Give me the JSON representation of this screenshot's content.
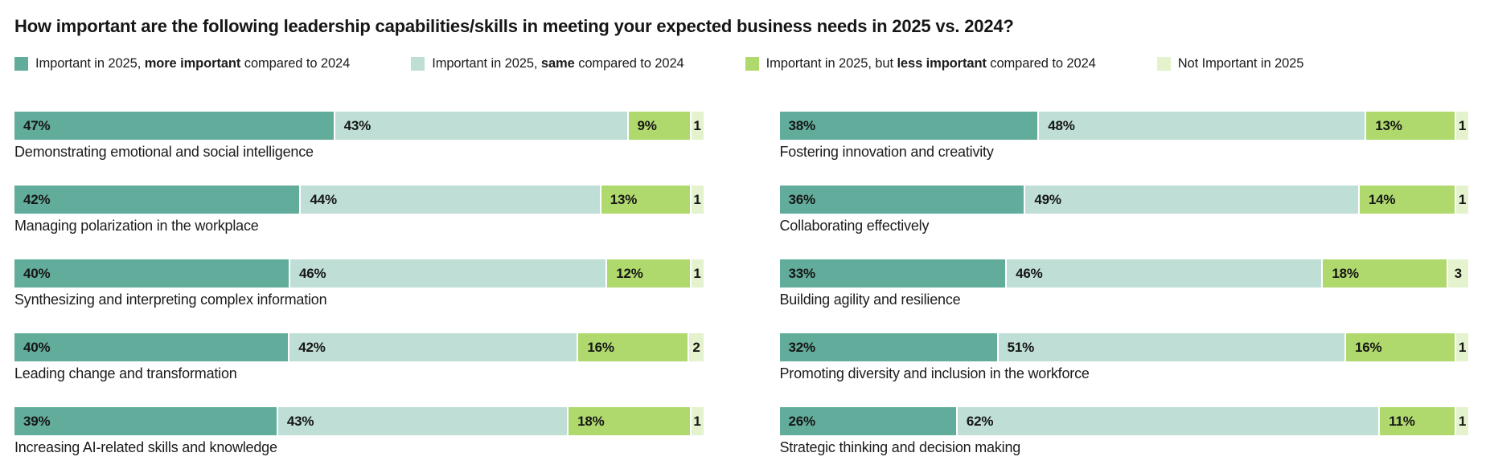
{
  "title": "How important are the following leadership capabilities/skills in meeting your expected business needs in 2025 vs. 2024?",
  "colors": {
    "more_important": "#62ac9b",
    "same": "#bfdfd6",
    "less_important": "#b0d96d",
    "not_important": "#e4f2cd",
    "text": "#161616",
    "background": "#ffffff"
  },
  "chart_data": {
    "type": "bar",
    "variant": "horizontal-stacked-100",
    "title": "How important are the following leadership capabilities/skills in meeting your expected business needs in 2025 vs. 2024?",
    "legend_position": "top",
    "grid": false,
    "series_names": [
      "Important in 2025, more important compared to 2024",
      "Important in 2025, same compared to 2024",
      "Important in 2025, but less important compared to 2024",
      "Not Important in 2025"
    ],
    "legend": [
      {
        "prefix": "Important in 2025, ",
        "bold": "more important",
        "suffix": " compared to 2024",
        "color": "#62ac9b"
      },
      {
        "prefix": "Important in 2025, ",
        "bold": "same",
        "suffix": " compared to 2024",
        "color": "#bfdfd6"
      },
      {
        "prefix": "Important in 2025, but ",
        "bold": "less important",
        "suffix": " compared to 2024",
        "color": "#b0d96d"
      },
      {
        "prefix": "Not Important in 2025",
        "bold": "",
        "suffix": "",
        "color": "#e4f2cd"
      }
    ],
    "columns": [
      {
        "items": [
          {
            "label": "Demonstrating emotional and social intelligence",
            "values": [
              47,
              43,
              9,
              1
            ],
            "display": [
              "47%",
              "43%",
              "9%",
              "1"
            ]
          },
          {
            "label": "Managing polarization in the workplace",
            "values": [
              42,
              44,
              13,
              1
            ],
            "display": [
              "42%",
              "44%",
              "13%",
              "1"
            ]
          },
          {
            "label": "Synthesizing and interpreting complex information",
            "values": [
              40,
              46,
              12,
              1
            ],
            "display": [
              "40%",
              "46%",
              "12%",
              "1"
            ]
          },
          {
            "label": "Leading change and transformation",
            "values": [
              40,
              42,
              16,
              2
            ],
            "display": [
              "40%",
              "42%",
              "16%",
              "2"
            ]
          },
          {
            "label": "Increasing AI-related skills and knowledge",
            "values": [
              39,
              43,
              18,
              1
            ],
            "display": [
              "39%",
              "43%",
              "18%",
              "1"
            ]
          }
        ]
      },
      {
        "items": [
          {
            "label": "Fostering innovation and creativity",
            "values": [
              38,
              48,
              13,
              1
            ],
            "display": [
              "38%",
              "48%",
              "13%",
              "1"
            ]
          },
          {
            "label": "Collaborating effectively",
            "values": [
              36,
              49,
              14,
              1
            ],
            "display": [
              "36%",
              "49%",
              "14%",
              "1"
            ]
          },
          {
            "label": "Building agility and resilience",
            "values": [
              33,
              46,
              18,
              3
            ],
            "display": [
              "33%",
              "46%",
              "18%",
              "3"
            ]
          },
          {
            "label": "Promoting diversity and inclusion in the workforce",
            "values": [
              32,
              51,
              16,
              1
            ],
            "display": [
              "32%",
              "51%",
              "16%",
              "1"
            ]
          },
          {
            "label": "Strategic thinking and decision making",
            "values": [
              26,
              62,
              11,
              1
            ],
            "display": [
              "26%",
              "62%",
              "11%",
              "1"
            ]
          }
        ]
      }
    ]
  }
}
